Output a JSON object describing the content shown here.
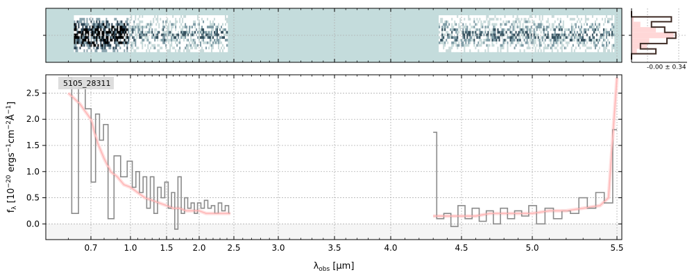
{
  "figure": {
    "object_label": "5105_28311",
    "side_label": "-0.00 ± 0.34"
  },
  "colors": {
    "twod_background": "#c4dcdc",
    "data_line": "#8a8a8a",
    "model_line": "#ffb4b4",
    "model_band": "#ffd7d7",
    "histogram_line": "#3d2a24",
    "grid": "#b0b0b0"
  },
  "chart_data": [
    {
      "type": "heatmap",
      "role": "2D spectrum",
      "x_wavelength_range_um": [
        0.5,
        5.55
      ],
      "covered_segments_um": [
        [
          0.6,
          2.45
        ],
        [
          4.3,
          5.5
        ]
      ],
      "grid": true
    },
    {
      "type": "line",
      "role": "1D spectrum",
      "xlabel": "λ_obs [μm]",
      "ylabel": "f_λ [10^-20 ergs^-1cm^-2Å^-1]",
      "xscale": "prism (nonlinear, tick labels in μm)",
      "xlim": [
        0.5,
        5.55
      ],
      "ylim": [
        -0.3,
        2.85
      ],
      "xticks": [
        0.7,
        1.0,
        1.5,
        2.0,
        2.5,
        3.0,
        3.5,
        4.0,
        4.5,
        5.0,
        5.5
      ],
      "xtick_labels": [
        "0.7",
        "1.0",
        "1.5",
        "2.0",
        "2.5",
        "3.0",
        "3.5",
        "4.0",
        "4.5",
        "5.0",
        "5.5"
      ],
      "yticks": [
        0.0,
        0.5,
        1.0,
        1.5,
        2.0,
        2.5
      ],
      "ytick_labels": [
        "0.0",
        "0.5",
        "1.0",
        "1.5",
        "2.0",
        "2.5"
      ],
      "grid": true,
      "series": [
        {
          "role": "data",
          "x": [
            0.6,
            0.63,
            0.66,
            0.69,
            0.72,
            0.75,
            0.78,
            0.81,
            0.85,
            0.9,
            0.95,
            1.0,
            1.05,
            1.1,
            1.15,
            1.2,
            1.25,
            1.3,
            1.35,
            1.4,
            1.45,
            1.5,
            1.55,
            1.6,
            1.65,
            1.7,
            1.75,
            1.8,
            1.85,
            1.9,
            1.95,
            2.0,
            2.05,
            2.1,
            2.15,
            2.2,
            2.25,
            2.3,
            2.35,
            2.4,
            2.45
          ],
          "y": [
            2.8,
            0.2,
            2.6,
            2.2,
            0.8,
            2.1,
            1.6,
            1.9,
            0.1,
            1.3,
            0.9,
            1.2,
            0.7,
            1.0,
            0.6,
            0.9,
            0.3,
            0.9,
            0.2,
            0.7,
            0.5,
            0.8,
            0.3,
            0.6,
            -0.1,
            0.9,
            0.2,
            0.5,
            0.3,
            0.4,
            0.2,
            0.4,
            0.3,
            0.45,
            0.3,
            0.35,
            0.2,
            0.4,
            0.25,
            0.35,
            0.2
          ]
        },
        {
          "role": "data",
          "x": [
            4.3,
            4.35,
            4.4,
            4.45,
            4.5,
            4.55,
            4.6,
            4.65,
            4.7,
            4.75,
            4.8,
            4.85,
            4.9,
            4.95,
            5.0,
            5.05,
            5.1,
            5.15,
            5.2,
            5.25,
            5.3,
            5.35,
            5.4,
            5.45,
            5.5
          ],
          "y": [
            1.75,
            0.1,
            0.2,
            -0.05,
            0.35,
            0.1,
            0.3,
            0.05,
            0.25,
            0.0,
            0.3,
            0.1,
            0.25,
            0.15,
            0.35,
            0.0,
            0.3,
            0.1,
            0.25,
            0.2,
            0.5,
            0.3,
            0.6,
            0.4,
            1.8
          ]
        },
        {
          "role": "model",
          "x": [
            0.6,
            0.65,
            0.7,
            0.75,
            0.8,
            0.85,
            0.9,
            0.95,
            1.0,
            1.1,
            1.2,
            1.3,
            1.4,
            1.5,
            1.6,
            1.7,
            1.8,
            1.9,
            2.0,
            2.1,
            2.2,
            2.3,
            2.4,
            2.45
          ],
          "y": [
            2.5,
            2.3,
            2.0,
            1.55,
            1.25,
            1.0,
            0.9,
            0.75,
            0.7,
            0.6,
            0.5,
            0.45,
            0.4,
            0.35,
            0.3,
            0.3,
            0.25,
            0.25,
            0.25,
            0.2,
            0.2,
            0.2,
            0.2,
            0.2
          ]
        },
        {
          "role": "model",
          "x": [
            4.3,
            4.4,
            4.5,
            4.6,
            4.7,
            4.8,
            4.9,
            5.0,
            5.1,
            5.2,
            5.3,
            5.4,
            5.45,
            5.5
          ],
          "y": [
            0.15,
            0.15,
            0.15,
            0.15,
            0.2,
            0.2,
            0.2,
            0.2,
            0.25,
            0.25,
            0.3,
            0.35,
            0.5,
            2.8
          ]
        }
      ]
    },
    {
      "type": "bar",
      "role": "histogram",
      "ylim": [
        0,
        1
      ],
      "bins": [
        {
          "y": [
            0.0,
            0.12
          ],
          "filled": 0.0,
          "outline": 0.0
        },
        {
          "y": [
            0.12,
            0.22
          ],
          "filled": 0.12,
          "outline": 0.55
        },
        {
          "y": [
            0.22,
            0.33
          ],
          "filled": 0.35,
          "outline": 0.2
        },
        {
          "y": [
            0.33,
            0.44
          ],
          "filled": 0.4,
          "outline": 0.8
        },
        {
          "y": [
            0.44,
            0.56
          ],
          "filled": 0.95,
          "outline": 1.0
        },
        {
          "y": [
            0.56,
            0.67
          ],
          "filled": 0.55,
          "outline": 0.75
        },
        {
          "y": [
            0.67,
            0.78
          ],
          "filled": 0.2,
          "outline": 0.45
        },
        {
          "y": [
            0.78,
            0.88
          ],
          "filled": 0.05,
          "outline": 0.9
        },
        {
          "y": [
            0.88,
            1.0
          ],
          "filled": 0.0,
          "outline": 0.0
        }
      ]
    }
  ]
}
